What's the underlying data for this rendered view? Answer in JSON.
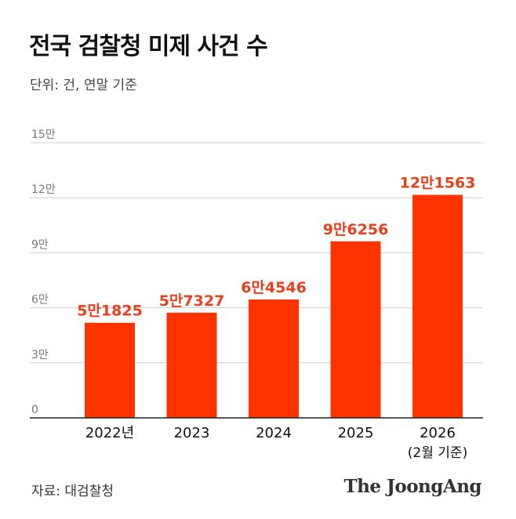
{
  "header": {
    "title": "전국 검찰청 미제 사건 수",
    "subtitle": "단위: 건, 연말 기준"
  },
  "footer": {
    "source": "자료: 대검찰청",
    "brand": "The JoongAng"
  },
  "colors": {
    "bar": "#ff3300",
    "value_label": "#e8401c",
    "axis_text": "#777777",
    "grid": "#d0d0d0",
    "baseline": "#222222"
  },
  "chart_data": {
    "type": "bar",
    "title": "전국 검찰청 미제 사건 수",
    "subtitle": "단위: 건, 연말 기준",
    "categories": [
      "2022년",
      "2023",
      "2024",
      "2025",
      "2026"
    ],
    "category_sublabels": [
      "",
      "",
      "",
      "",
      "(2월 기준)"
    ],
    "values": [
      51825,
      57327,
      64546,
      96256,
      121563
    ],
    "value_labels": [
      "5만1825",
      "5만7327",
      "6만4546",
      "9만6256",
      "12만1563"
    ],
    "ylim": [
      0,
      150000
    ],
    "yticks": [
      0,
      30000,
      60000,
      90000,
      120000,
      150000
    ],
    "ytick_labels": [
      "0",
      "3만",
      "6만",
      "9만",
      "12만",
      "15만"
    ],
    "grid": true,
    "legend": "none"
  }
}
